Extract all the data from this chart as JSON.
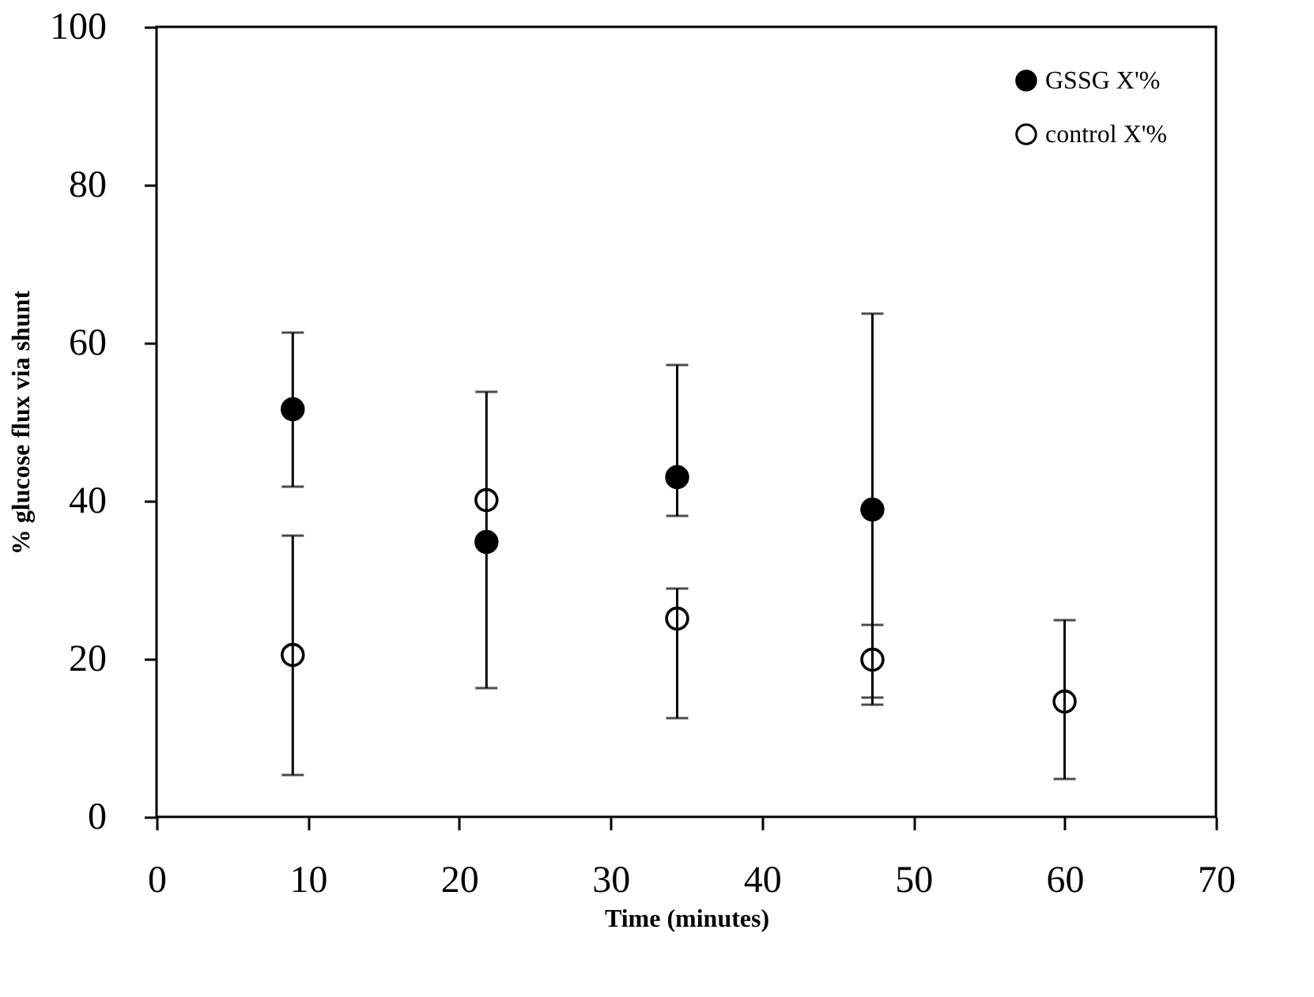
{
  "chart_data": {
    "type": "scatter",
    "xlabel": "Time (minutes)",
    "ylabel": "% glucose flux via shunt",
    "xlim": [
      0,
      70
    ],
    "xticks": [
      0,
      10,
      20,
      30,
      40,
      50,
      60,
      70
    ],
    "ylim": [
      0,
      100
    ],
    "yticks": [
      0,
      20,
      40,
      60,
      80,
      100
    ],
    "grid": false,
    "legend": "top right",
    "marker": "circle",
    "series": [
      {
        "name": "GSSG X'%",
        "color": "#000000",
        "x": [
          9,
          21.8,
          34.4,
          47.3
        ],
        "values": [
          51.6,
          34.8,
          43.0,
          38.9
        ],
        "errors": [
          [
            41.8,
            61.3
          ],
          [
            16.3,
            53.8
          ],
          [
            38.1,
            57.2
          ],
          [
            14.2,
            63.7
          ]
        ]
      },
      {
        "name": "control  X'%",
        "color": "#ffffff",
        "x": [
          9,
          21.8,
          34.4,
          47.3,
          60
        ],
        "values": [
          20.5,
          40.1,
          25.1,
          19.9,
          14.6
        ],
        "errors": [
          [
            5.3,
            35.6
          ],
          null,
          [
            12.5,
            28.9
          ],
          [
            15.1,
            24.3
          ],
          [
            4.8,
            24.9
          ]
        ]
      }
    ]
  }
}
